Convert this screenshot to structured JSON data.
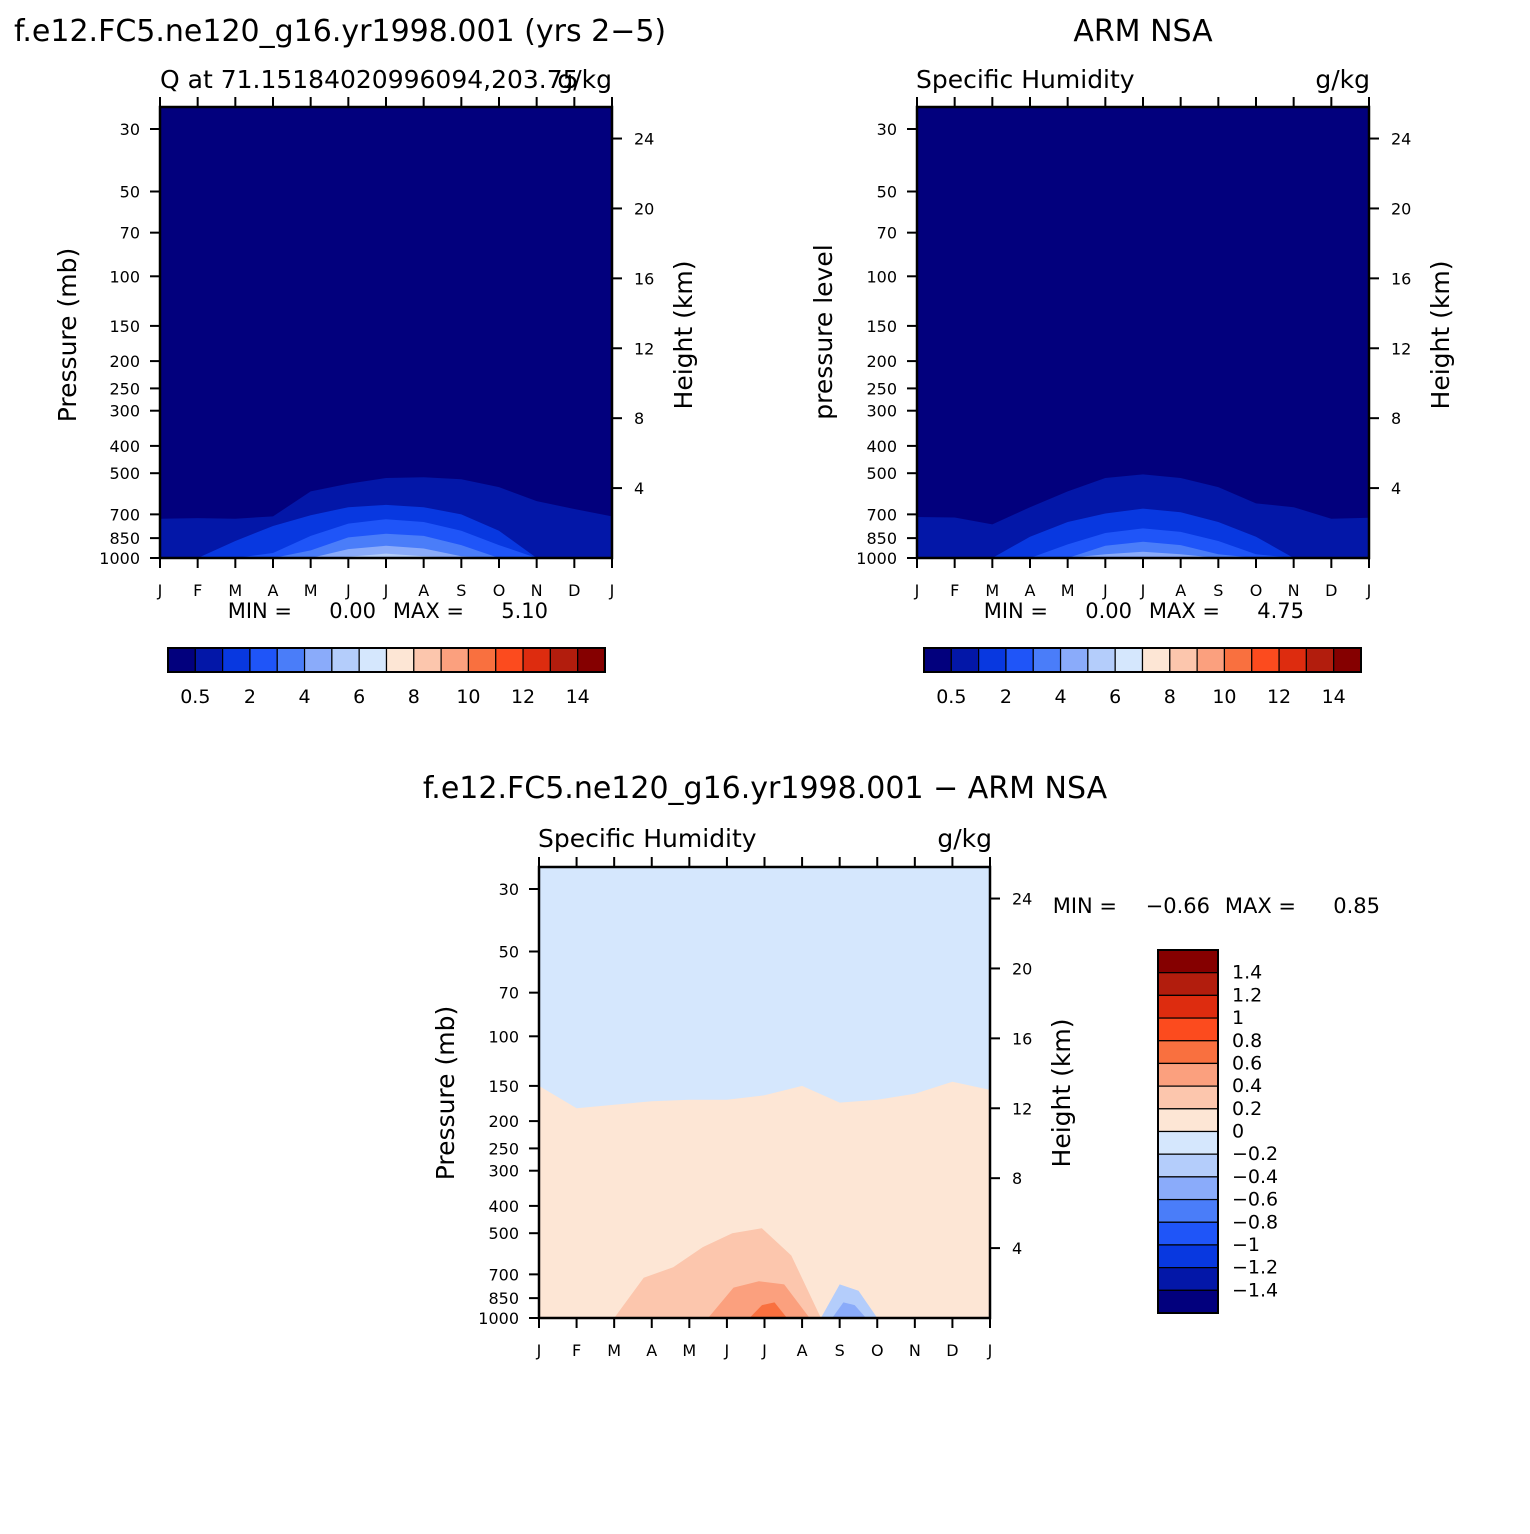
{
  "colors": {
    "positive_scale": [
      "#02007d",
      "#0317a8",
      "#0838e0",
      "#1f55f8",
      "#4a7df9",
      "#8aabfa",
      "#b4cdfb",
      "#d5e7fd",
      "#fde6d5",
      "#fcc6ad",
      "#fba07e",
      "#f9703f",
      "#fc4b1e",
      "#dd2c0f",
      "#b21d0d",
      "#850000"
    ],
    "diff_scale": [
      "#02007d",
      "#0317a8",
      "#0838e0",
      "#1f55f8",
      "#4a7df9",
      "#8aabfa",
      "#b4cdfb",
      "#d5e7fd",
      "#fde6d5",
      "#fcc6ad",
      "#fba07e",
      "#f9703f",
      "#fc4b1e",
      "#dd2c0f",
      "#b21d0d",
      "#850000"
    ]
  },
  "chart_data": [
    {
      "id": "model",
      "type": "heatmap",
      "suptitle": "f.e12.FC5.ne120_g16.yr1998.001 (yrs 2−5)",
      "title_left": "Q at 71.15184020996094,203.75",
      "title_right": "g/kg",
      "ylabel": "Pressure (mb)",
      "ylabel_right": "Height (km)",
      "months": [
        "J",
        "F",
        "M",
        "A",
        "M",
        "J",
        "J",
        "A",
        "S",
        "O",
        "N",
        "D",
        "J"
      ],
      "pressure_ticks": [
        30,
        50,
        70,
        100,
        150,
        200,
        250,
        300,
        400,
        500,
        700,
        850,
        1000
      ],
      "height_ticks": [
        4,
        8,
        12,
        16,
        20,
        24
      ],
      "ylim": [
        30,
        1000
      ],
      "min_label": "MIN =",
      "min_value": "0.00",
      "max_label": "MAX =",
      "max_value": "5.10",
      "colorbar_labels": [
        "0.5",
        "2",
        "4",
        "6",
        "8",
        "10",
        "12",
        "14"
      ],
      "contour_tops_mb": [
        [
          725,
          722,
          725,
          712,
          580,
          545,
          520,
          517,
          525,
          560,
          628,
          670,
          712
        ],
        [
          1000,
          1000,
          870,
          770,
          705,
          660,
          648,
          660,
          700,
          800,
          1000,
          1000,
          1000
        ],
        [
          1000,
          1000,
          1000,
          960,
          835,
          755,
          728,
          745,
          800,
          900,
          1000,
          1000,
          1000
        ],
        [
          1000,
          1000,
          1000,
          1000,
          940,
          845,
          820,
          835,
          900,
          1000,
          1000,
          1000,
          1000
        ],
        [
          1000,
          1000,
          1000,
          1000,
          1000,
          930,
          905,
          925,
          985,
          1000,
          1000,
          1000,
          1000
        ],
        [
          1000,
          1000,
          1000,
          1000,
          1000,
          990,
          965,
          985,
          1000,
          1000,
          1000,
          1000,
          1000
        ]
      ]
    },
    {
      "id": "obs",
      "type": "heatmap",
      "suptitle": "ARM NSA",
      "title_left": "Specific Humidity",
      "title_right": "g/kg",
      "ylabel": "pressure level",
      "ylabel_right": "Height (km)",
      "months": [
        "J",
        "F",
        "M",
        "A",
        "M",
        "J",
        "J",
        "A",
        "S",
        "O",
        "N",
        "D",
        "J"
      ],
      "pressure_ticks": [
        30,
        50,
        70,
        100,
        150,
        200,
        250,
        300,
        400,
        500,
        700,
        850,
        1000
      ],
      "height_ticks": [
        4,
        8,
        12,
        16,
        20,
        24
      ],
      "ylim": [
        30,
        1000
      ],
      "min_label": "MIN =",
      "min_value": "0.00",
      "max_label": "MAX =",
      "max_value": "4.75",
      "colorbar_labels": [
        "0.5",
        "2",
        "4",
        "6",
        "8",
        "10",
        "12",
        "14"
      ],
      "contour_tops_mb": [
        [
          715,
          718,
          760,
          660,
          580,
          520,
          505,
          520,
          560,
          640,
          660,
          725,
          720
        ],
        [
          1000,
          1000,
          1000,
          840,
          745,
          695,
          668,
          688,
          745,
          840,
          1000,
          1000,
          1000
        ],
        [
          1000,
          1000,
          1000,
          1000,
          895,
          815,
          785,
          808,
          870,
          970,
          1000,
          1000,
          1000
        ],
        [
          1000,
          1000,
          1000,
          1000,
          1000,
          905,
          875,
          900,
          970,
          1000,
          1000,
          1000,
          1000
        ],
        [
          1000,
          1000,
          1000,
          1000,
          1000,
          970,
          950,
          970,
          1000,
          1000,
          1000,
          1000,
          1000
        ]
      ]
    },
    {
      "id": "diff",
      "type": "heatmap",
      "suptitle": "f.e12.FC5.ne120_g16.yr1998.001 − ARM NSA",
      "title_left": "Specific Humidity",
      "title_right": "g/kg",
      "ylabel": "Pressure (mb)",
      "ylabel_right": "Height (km)",
      "months": [
        "J",
        "F",
        "M",
        "A",
        "M",
        "J",
        "J",
        "A",
        "S",
        "O",
        "N",
        "D",
        "J"
      ],
      "pressure_ticks": [
        30,
        50,
        70,
        100,
        150,
        200,
        250,
        300,
        400,
        500,
        700,
        850,
        1000
      ],
      "height_ticks": [
        4,
        8,
        12,
        16,
        20,
        24
      ],
      "ylim": [
        30,
        1000
      ],
      "min_label": "MIN =",
      "min_value": "−0.66",
      "max_label": "MAX =",
      "max_value": "0.85",
      "colorbar_labels": [
        "1.4",
        "1.2",
        "1",
        "0.8",
        "0.6",
        "0.4",
        "0.2",
        "0",
        "−0.2",
        "−0.4",
        "−0.6",
        "−0.8",
        "−1",
        "−1.2",
        "−1.4"
      ],
      "warm_region_top_mb": [
        150,
        180,
        175,
        170,
        168,
        168,
        162,
        150,
        172,
        168,
        160,
        145,
        155
      ],
      "region_0_2_to_0_4_mb": {
        "months_start": 2.0,
        "months_end": 7.5,
        "tops": [
          1000,
          720,
          660,
          560,
          500,
          480,
          600,
          1000
        ]
      },
      "region_0_4_to_0_6_mb": {
        "months_start": 4.5,
        "months_end": 7.2,
        "tops": [
          1000,
          780,
          740,
          760,
          1000
        ]
      },
      "region_negative_mb": {
        "months_start": 7.5,
        "months_end": 9.0,
        "tops": [
          1000,
          760,
          800,
          1000
        ]
      }
    }
  ]
}
